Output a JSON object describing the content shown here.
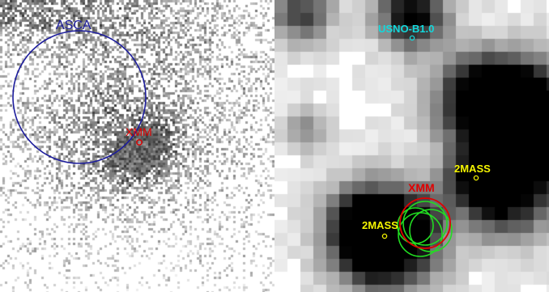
{
  "left_panel": {
    "asca_label": "ASCA",
    "xmm_label": "XMM"
  },
  "right_panel": {
    "usno_label": "USNO-B1.0",
    "xmm_label": "XMM",
    "twomass_upper_label": "2MASS",
    "twomass_lower_label": "2MASS"
  },
  "colors": {
    "asca_circle": "#1c1c9c",
    "xmm": "#e00000",
    "twomass": "#f5f500",
    "usno": "#12d8dc",
    "green_circles": "#22dd22"
  }
}
